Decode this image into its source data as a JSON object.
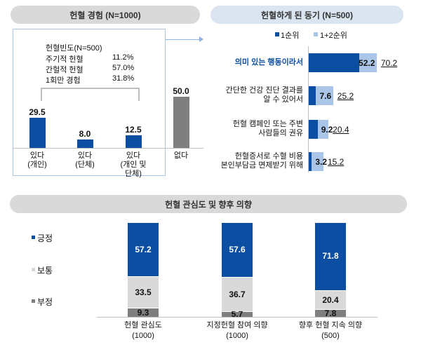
{
  "colors": {
    "dark_blue": "#0b4ea2",
    "light_blue": "#a9c6e8",
    "gray": "#7f7f7f",
    "light_gray": "#d9d9d9",
    "dark_gray": "#7f7f7f"
  },
  "chart_data": [
    {
      "type": "bar",
      "title": "헌혈 경험 (N=1000)",
      "categories": [
        "있다\n(개인)",
        "있다\n(단체)",
        "있다\n(개인 및\n단체)",
        "없다"
      ],
      "values": [
        29.5,
        8.0,
        12.5,
        50.0
      ],
      "value_labels": [
        "29.5",
        "8.0",
        "12.5",
        "50.0"
      ],
      "annotation": {
        "title": "헌혈빈도(N=500)",
        "rows": [
          {
            "label": "주기적 헌혈",
            "value": "11.2%"
          },
          {
            "label": "간헐적 헌혈",
            "value": "57.0%"
          },
          {
            "label": "1회만 경험",
            "value": "31.8%"
          }
        ]
      }
    },
    {
      "type": "bar",
      "orientation": "horizontal",
      "title": "헌혈하게 된 동기 (N=500)",
      "legend": [
        "1순위",
        "1+2순위"
      ],
      "categories": [
        "의미 있는 행동이라서",
        "간단한 건강 진단 결과를\n알 수 있어서",
        "헌혈 캠페인 또는 주변\n사람들의 권유",
        "헌혈증서로 수혈 비용\n본인부담금 면제받기 위해"
      ],
      "series": [
        {
          "name": "1순위",
          "values": [
            52.2,
            7.6,
            9.2,
            3.2
          ],
          "labels": [
            "52.2",
            "7.6",
            "9.2",
            "3.2"
          ]
        },
        {
          "name": "1+2순위",
          "values": [
            70.2,
            25.2,
            20.4,
            15.2
          ],
          "labels": [
            "70.2",
            "25.2",
            "20.4",
            "15.2"
          ]
        }
      ]
    },
    {
      "type": "bar",
      "stacked": true,
      "title": "헌혈 관심도 및 향후 의향",
      "legend": [
        "긍정",
        "보통",
        "부정"
      ],
      "categories": [
        "헌혈 관심도\n(1000)",
        "지정헌혈 참여 의향\n(1000)",
        "향후 헌혈 지속 의향\n(500)"
      ],
      "series": [
        {
          "name": "부정",
          "values": [
            9.3,
            5.7,
            7.8
          ],
          "labels": [
            "9.3",
            "5.7",
            "7.8"
          ]
        },
        {
          "name": "보통",
          "values": [
            33.5,
            36.7,
            20.4
          ],
          "labels": [
            "33.5",
            "36.7",
            "20.4"
          ]
        },
        {
          "name": "긍정",
          "values": [
            57.2,
            57.6,
            71.8
          ],
          "labels": [
            "57.2",
            "57.6",
            "71.8"
          ]
        }
      ]
    }
  ]
}
